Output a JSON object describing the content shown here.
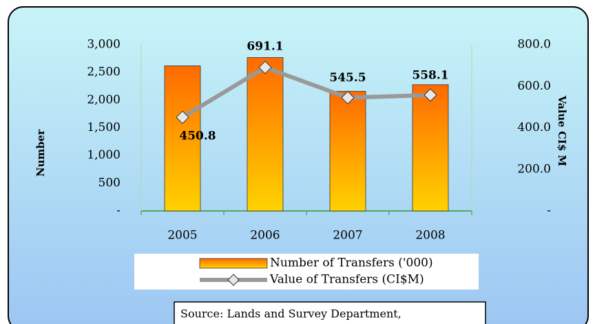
{
  "chart_data": {
    "type": "bar-line",
    "categories": [
      "2005",
      "2006",
      "2007",
      "2008"
    ],
    "series": [
      {
        "name": "Number of Transfers ('000)",
        "type": "bar",
        "color": "#ff7f00",
        "values": [
          2620,
          2770,
          2160,
          2280
        ]
      },
      {
        "name": "Value of Transfers (CI$M)",
        "type": "line",
        "axis": "y2",
        "color": "#999999",
        "values": [
          450.8,
          691.1,
          545.5,
          558.1
        ]
      }
    ],
    "ylabel": "Number",
    "y2label": "Value CI$ M",
    "ylim": [
      0,
      3000
    ],
    "yticks": [
      {
        "value": 0,
        "label": "-"
      },
      500,
      {
        "value": 1000,
        "label": "1,000"
      },
      {
        "value": 1500,
        "label": "1,500"
      },
      {
        "value": 2000,
        "label": "2,000"
      },
      {
        "value": 2500,
        "label": "2,500"
      },
      {
        "value": 3000,
        "label": "3,000"
      }
    ],
    "y2lim": [
      0,
      800
    ],
    "y2ticks": [
      {
        "value": 0,
        "label": "-"
      },
      {
        "value": 200,
        "label": "200.0"
      },
      {
        "value": 400,
        "label": "400.0"
      },
      {
        "value": 600,
        "label": "600.0"
      },
      {
        "value": 800,
        "label": "800.0"
      }
    ],
    "source": "Source: Lands and Survey Department,"
  }
}
